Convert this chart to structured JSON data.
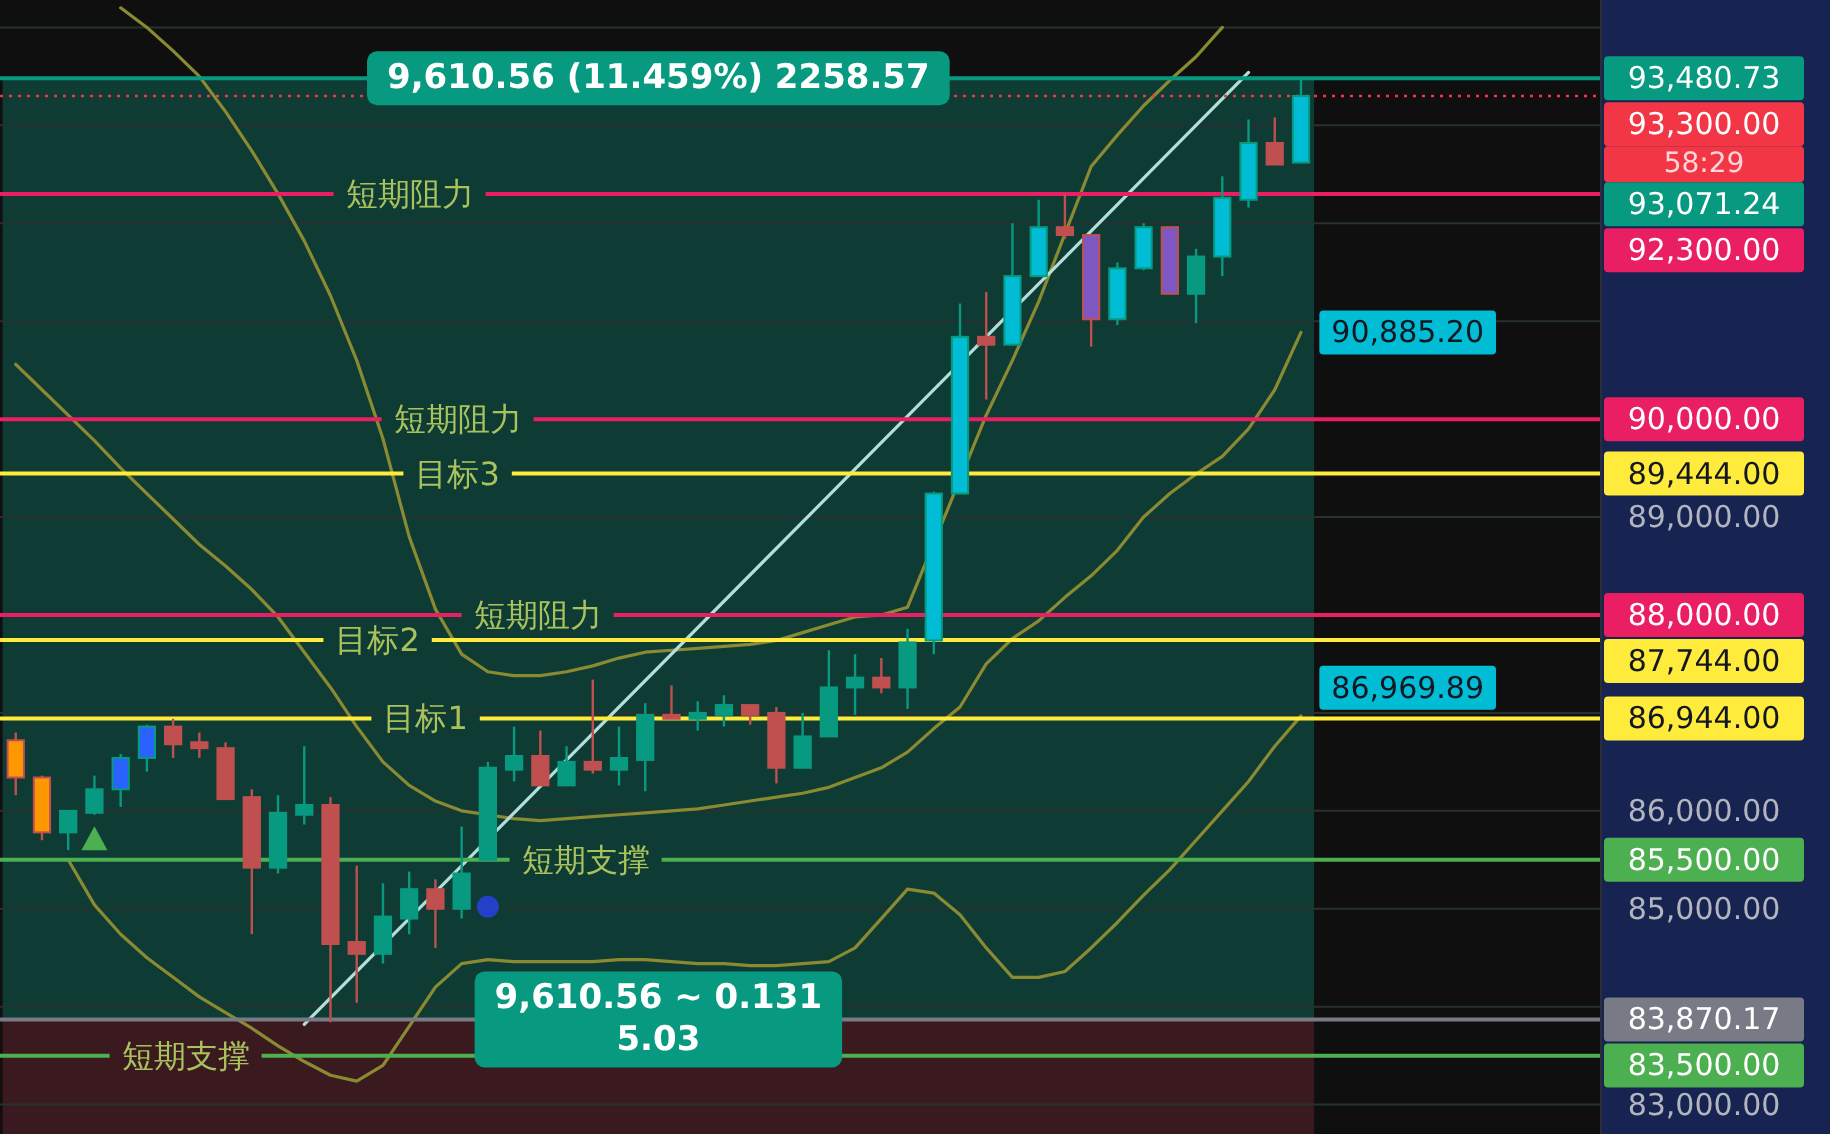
{
  "chart_data": {
    "type": "candlestick",
    "categories": [
      null,
      null,
      null,
      null,
      null,
      null,
      null,
      null,
      null,
      null,
      null,
      null,
      null,
      null,
      null,
      null,
      null,
      null,
      null,
      null,
      null,
      null,
      null,
      null,
      null,
      null,
      null,
      null,
      null,
      null,
      null,
      null,
      null,
      null,
      null,
      null,
      null,
      null,
      null,
      null,
      null,
      null,
      null,
      null,
      null,
      null,
      null,
      null,
      null,
      null
    ],
    "ohlc": [
      [
        86720,
        86800,
        86160,
        86340
      ],
      [
        86340,
        86360,
        85700,
        85780
      ],
      [
        85780,
        86000,
        85600,
        86000
      ],
      [
        85980,
        86360,
        85960,
        86220
      ],
      [
        86220,
        86580,
        86040,
        86540
      ],
      [
        86540,
        86880,
        86400,
        86860
      ],
      [
        86860,
        86940,
        86540,
        86680
      ],
      [
        86700,
        86800,
        86540,
        86640
      ],
      [
        86640,
        86700,
        86120,
        86120
      ],
      [
        86140,
        86220,
        84740,
        85420
      ],
      [
        85420,
        86160,
        85360,
        85980
      ],
      [
        85960,
        86660,
        85860,
        86060
      ],
      [
        86060,
        86140,
        83840,
        84640
      ],
      [
        84660,
        85440,
        84040,
        84540
      ],
      [
        84540,
        85260,
        84440,
        84920
      ],
      [
        84900,
        85380,
        84740,
        85200
      ],
      [
        85200,
        85300,
        84600,
        85000
      ],
      [
        85000,
        85840,
        84900,
        85360
      ],
      [
        85500,
        86500,
        85500,
        86440
      ],
      [
        86420,
        86860,
        86300,
        86560
      ],
      [
        86560,
        86820,
        86260,
        86260
      ],
      [
        86260,
        86660,
        86260,
        86500
      ],
      [
        86500,
        87340,
        86380,
        86420
      ],
      [
        86420,
        86860,
        86260,
        86540
      ],
      [
        86520,
        87100,
        86200,
        86980
      ],
      [
        86980,
        87280,
        86940,
        86940
      ],
      [
        86940,
        87120,
        86820,
        87000
      ],
      [
        86980,
        87180,
        86860,
        87080
      ],
      [
        87080,
        87080,
        86880,
        86980
      ],
      [
        87000,
        87060,
        86280,
        86440
      ],
      [
        86440,
        87000,
        86440,
        86760
      ],
      [
        86760,
        87640,
        86760,
        87260
      ],
      [
        87260,
        87600,
        86980,
        87360
      ],
      [
        87360,
        87560,
        87200,
        87260
      ],
      [
        87260,
        87860,
        87040,
        87720
      ],
      [
        87740,
        89260,
        87600,
        89240
      ],
      [
        89240,
        91180,
        89240,
        90840
      ],
      [
        90840,
        91300,
        90200,
        90760
      ],
      [
        90760,
        92000,
        90760,
        91460
      ],
      [
        91460,
        92240,
        91460,
        91960
      ],
      [
        91960,
        92300,
        91840,
        91880
      ],
      [
        91880,
        91880,
        90740,
        91020
      ],
      [
        91020,
        91600,
        90960,
        91540
      ],
      [
        91540,
        92000,
        91520,
        91960
      ],
      [
        91960,
        91960,
        91280,
        91280
      ],
      [
        91280,
        91740,
        90980,
        91660
      ],
      [
        91660,
        92480,
        91460,
        92260
      ],
      [
        92240,
        93060,
        92160,
        92820
      ],
      [
        92820,
        93080,
        92600,
        92600
      ],
      [
        92620,
        93480,
        92620,
        93300
      ]
    ],
    "colors": [
      "#ff9800",
      "#ff9800",
      "#089981",
      "#089981",
      "#2962ff",
      "#2962ff",
      "#c0504f",
      "#c0504f",
      "#c0504f",
      "#c0504f",
      "#089981",
      "#089981",
      "#c0504f",
      "#c0504f",
      "#089981",
      "#089981",
      "#c0504f",
      "#089981",
      "#089981",
      "#089981",
      "#c0504f",
      "#089981",
      "#c0504f",
      "#089981",
      "#089981",
      "#c0504f",
      "#089981",
      "#089981",
      "#c0504f",
      "#c0504f",
      "#089981",
      "#089981",
      "#089981",
      "#c0504f",
      "#089981",
      "#00bcd4",
      "#00bcd4",
      "#c0504f",
      "#00bcd4",
      "#00bcd4",
      "#c0504f",
      "#7e57c2",
      "#00bcd4",
      "#00bcd4",
      "#7e57c2",
      "#089981",
      "#00bcd4",
      "#00bcd4",
      "#c0504f",
      "#00bcd4"
    ],
    "series": [
      {
        "type": "line",
        "color": "#8a8a32",
        "values": [
          null,
          null,
          null,
          null,
          94200,
          94000,
          93760,
          93500,
          93140,
          92740,
          92300,
          91820,
          91260,
          90600,
          89800,
          88800,
          88060,
          87600,
          87420,
          87380,
          87380,
          87420,
          87480,
          87560,
          87620,
          87640,
          87660,
          87680,
          87700,
          87740,
          87820,
          87900,
          87980,
          88000,
          88080,
          null,
          null,
          90040,
          90600,
          91200,
          null,
          92580,
          92900,
          93200,
          93460,
          93700,
          94000,
          null,
          null,
          null
        ]
      },
      {
        "type": "line",
        "color": "#8a8a32",
        "values": [
          90560,
          90300,
          90040,
          89780,
          89500,
          89240,
          88980,
          88720,
          88500,
          88260,
          87980,
          87620,
          87260,
          86860,
          86500,
          86260,
          86100,
          86000,
          85960,
          85920,
          85900,
          85920,
          85940,
          85960,
          85980,
          86000,
          86020,
          86060,
          86100,
          86140,
          86180,
          86240,
          86340,
          86440,
          86600,
          86840,
          87060,
          87500,
          87760,
          87940,
          88180,
          88400,
          88660,
          89000,
          89240,
          89440,
          89620,
          89900,
          90300,
          90885.2
        ],
        "value_labels": [
          null,
          null,
          null,
          null,
          null,
          null,
          null,
          null,
          null,
          null,
          null,
          null,
          null,
          null,
          null,
          null,
          null,
          null,
          null,
          null,
          null,
          null,
          null,
          null,
          null,
          null,
          null,
          null,
          null,
          null,
          null,
          null,
          null,
          null,
          null,
          null,
          null,
          null,
          null,
          null,
          null,
          null,
          null,
          null,
          null,
          null,
          null,
          null,
          null,
          "90,885.20"
        ]
      },
      {
        "type": "line",
        "color": "#8a8a32",
        "values": [
          null,
          null,
          85500,
          85040,
          84740,
          84500,
          84300,
          84100,
          83940,
          83780,
          83600,
          83440,
          83300,
          83240,
          83400,
          83800,
          84200,
          84440,
          84480,
          84460,
          84460,
          84460,
          84460,
          84480,
          84480,
          84460,
          84440,
          84440,
          84420,
          84420,
          84440,
          84460,
          84600,
          84900,
          85200,
          85160,
          84940,
          84600,
          84300,
          84300,
          84360,
          84600,
          84860,
          85140,
          85400,
          85700,
          86000,
          86300,
          86660,
          86969.89
        ],
        "value_labels": [
          null,
          null,
          null,
          null,
          null,
          null,
          null,
          null,
          null,
          null,
          null,
          null,
          null,
          null,
          null,
          null,
          null,
          null,
          null,
          null,
          null,
          null,
          null,
          null,
          null,
          null,
          null,
          null,
          null,
          null,
          null,
          null,
          null,
          null,
          null,
          null,
          null,
          null,
          null,
          null,
          null,
          null,
          null,
          null,
          null,
          null,
          null,
          null,
          null,
          "86,969.89"
        ]
      },
      {
        "type": "scatter",
        "color": "#4caf50",
        "marker": "triangle",
        "values": [
          null,
          null,
          null,
          85700,
          null,
          null,
          null,
          null,
          null,
          null,
          null,
          null,
          null,
          null,
          null,
          null,
          null,
          null,
          null,
          null,
          null,
          null,
          null,
          null,
          null,
          null,
          null,
          null,
          null,
          null,
          null,
          null,
          null,
          null,
          null,
          null,
          null,
          null,
          null,
          null,
          null,
          null,
          null,
          null,
          null,
          null,
          null,
          null,
          null,
          null
        ]
      },
      {
        "type": "scatter",
        "color": "#2340c8",
        "marker": "circle",
        "values": [
          null,
          null,
          null,
          null,
          null,
          null,
          null,
          null,
          null,
          null,
          null,
          null,
          null,
          null,
          null,
          null,
          null,
          null,
          85020,
          null,
          null,
          null,
          null,
          null,
          null,
          null,
          null,
          null,
          null,
          null,
          null,
          null,
          null,
          null,
          null,
          null,
          null,
          null,
          null,
          null,
          null,
          null,
          null,
          null,
          null,
          null,
          null,
          null,
          null,
          null
        ]
      },
      {
        "type": "line",
        "color": "#b2dfdb",
        "values": [
          null,
          null,
          null,
          null,
          null,
          null,
          null,
          null,
          null,
          null,
          null,
          83820,
          null,
          null,
          null,
          null,
          null,
          null,
          null,
          null,
          null,
          null,
          null,
          null,
          null,
          null,
          null,
          null,
          null,
          null,
          null,
          null,
          null,
          null,
          null,
          null,
          null,
          null,
          null,
          null,
          null,
          null,
          null,
          null,
          null,
          null,
          null,
          93540,
          null,
          null
        ]
      }
    ],
    "ylim": [
      82700,
      94280
    ],
    "yticks": [
      {
        "value": 83000,
        "label": "83,000.00"
      },
      {
        "value": 84000,
        "label": null
      },
      {
        "value": 85000,
        "label": "85,000.00"
      },
      {
        "value": 86000,
        "label": "86,000.00"
      },
      {
        "value": 87000,
        "label": null
      },
      {
        "value": 89000,
        "label": "89,000.00"
      },
      {
        "value": 91000,
        "label": null
      },
      {
        "value": 92000,
        "label": null
      },
      {
        "value": 93000,
        "label": null
      },
      {
        "value": 94000,
        "label": null
      }
    ],
    "grid": "y",
    "ref_lines": [
      {
        "axis": "y",
        "value": 93480.73,
        "label": "93,480.73",
        "color": "#089981"
      },
      {
        "axis": "y",
        "value": 93300,
        "label": "93,300.00",
        "color": "#f23645",
        "line_style": "dotted"
      },
      {
        "axis": "y",
        "value": 92300,
        "label": "短期阻力\n92,300.00",
        "color": "#e91e63"
      },
      {
        "axis": "y",
        "value": 90000,
        "label": "短期阻力\n90,000.00",
        "color": "#e91e63"
      },
      {
        "axis": "y",
        "value": 89444,
        "label": "目标3\n89,444.00",
        "color": "#ffeb3b"
      },
      {
        "axis": "y",
        "value": 88000,
        "label": "短期阻力\n88,000.00",
        "color": "#e91e63"
      },
      {
        "axis": "y",
        "value": 87744,
        "label": "目标2\n87,744.00",
        "color": "#ffeb3b"
      },
      {
        "axis": "y",
        "value": 86944,
        "label": "目标1\n86,944.00",
        "color": "#ffeb3b"
      },
      {
        "axis": "y",
        "value": 85500,
        "label": "短期支撑\n85,500.00",
        "color": "#4caf50"
      },
      {
        "axis": "y",
        "value": 83870.17,
        "label": "83,870.17",
        "color": "#787b86"
      },
      {
        "axis": "y",
        "value": 83500,
        "label": "短期支撑\n83,500.00",
        "color": "#4caf50"
      }
    ],
    "bands": [
      {
        "axis": "y",
        "from": 83870.17,
        "to": 93480.73,
        "label": "9,610.56 (11.459%) 2258.57",
        "color": "#0e3b33"
      },
      {
        "axis": "y",
        "from": 82700,
        "to": 83870.17,
        "label": "9,610.56 ~ 0.131\n5.03",
        "color": "#3a1a1f"
      }
    ],
    "annotations": [
      "58:29",
      "93,071.24"
    ]
  }
}
